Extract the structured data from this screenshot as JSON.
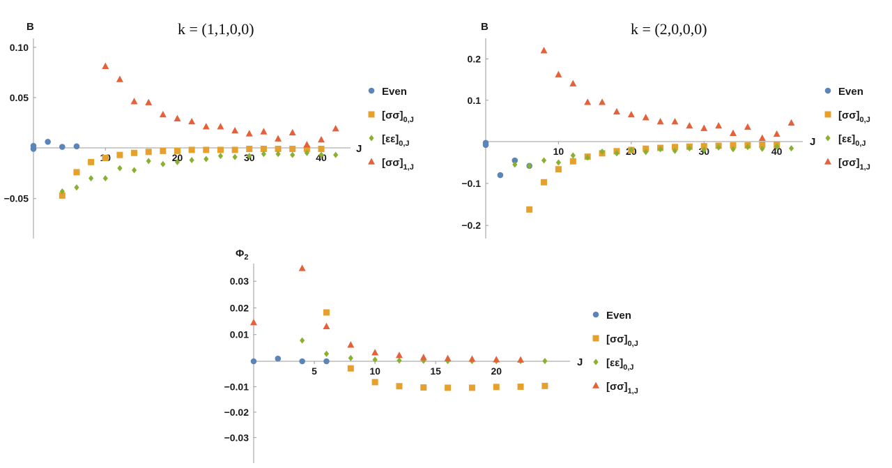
{
  "colors": {
    "even": "#5b84b9",
    "ss0": "#e6a02d",
    "ee0": "#8ab02f",
    "ss1": "#e5613a"
  },
  "legend_entries": [
    {
      "key": "even",
      "label": "Even",
      "marker": "circle"
    },
    {
      "key": "ss0",
      "label": "[σσ]0,J",
      "marker": "square"
    },
    {
      "key": "ee0",
      "label": "[εε]0,J",
      "marker": "diamond"
    },
    {
      "key": "ss1",
      "label": "[σσ]1,J",
      "marker": "triangle"
    }
  ],
  "chart_data": [
    {
      "type": "scatter",
      "title": "k = (1,1,0,0)",
      "ylabel": "B",
      "xlabel": "J",
      "xlim": [
        0,
        43
      ],
      "ylim": [
        -0.088,
        0.104
      ],
      "xticks": [
        10,
        20,
        30,
        40
      ],
      "yticks": [
        -0.05,
        0.05,
        0.1
      ],
      "yticklabels": [
        "−0.05",
        "0.05",
        "0.10"
      ],
      "series": [
        {
          "key": "even",
          "name": "Even",
          "x": [
            0,
            0,
            2,
            4,
            6
          ],
          "y": [
            0.002,
            -0.001,
            0.006,
            0.001,
            0.0015
          ]
        },
        {
          "key": "ss0",
          "name": "[σσ]0,J",
          "x": [
            4,
            6,
            8,
            10,
            12,
            14,
            16,
            18,
            20,
            22,
            24,
            26,
            28,
            30,
            32,
            34,
            36,
            38,
            40
          ],
          "y": [
            -0.047,
            -0.024,
            -0.014,
            -0.01,
            -0.007,
            -0.005,
            -0.004,
            -0.003,
            -0.003,
            -0.002,
            -0.002,
            -0.002,
            -0.002,
            -0.001,
            -0.001,
            -0.001,
            -0.001,
            -0.001,
            -0.001
          ]
        },
        {
          "key": "ee0",
          "name": "[εε]0,J",
          "x": [
            4,
            6,
            8,
            10,
            12,
            14,
            16,
            18,
            20,
            22,
            24,
            26,
            28,
            30,
            32,
            34,
            36,
            38,
            40,
            42
          ],
          "y": [
            -0.043,
            -0.039,
            -0.03,
            -0.03,
            -0.02,
            -0.022,
            -0.013,
            -0.016,
            -0.014,
            -0.012,
            -0.011,
            -0.008,
            -0.009,
            -0.008,
            -0.006,
            -0.006,
            -0.007,
            -0.005,
            -0.007,
            -0.007
          ]
        },
        {
          "key": "ss1",
          "name": "[σσ]1,J",
          "x": [
            10,
            12,
            14,
            16,
            18,
            20,
            22,
            24,
            26,
            28,
            30,
            32,
            34,
            36,
            38,
            40,
            42
          ],
          "y": [
            0.081,
            0.068,
            0.046,
            0.045,
            0.033,
            0.029,
            0.026,
            0.021,
            0.021,
            0.017,
            0.014,
            0.016,
            0.009,
            0.015,
            0.003,
            0.008,
            0.019
          ]
        }
      ]
    },
    {
      "type": "scatter",
      "title": "k = (2,0,0,0)",
      "ylabel": "B",
      "xlabel": "J",
      "xlim": [
        0,
        43
      ],
      "ylim": [
        -0.228,
        0.238
      ],
      "xticks": [
        10,
        20,
        30,
        40
      ],
      "yticks": [
        -0.2,
        -0.1,
        0.1,
        0.2
      ],
      "yticklabels": [
        "−0.2",
        "−0.1",
        "0.1",
        "0.2"
      ],
      "series": [
        {
          "key": "even",
          "name": "Even",
          "x": [
            0,
            0,
            2,
            4,
            6
          ],
          "y": [
            -0.003,
            -0.008,
            -0.08,
            -0.045,
            -0.058
          ]
        },
        {
          "key": "ss0",
          "name": "[σσ]0,J",
          "x": [
            6,
            8,
            10,
            12,
            14,
            16,
            18,
            20,
            22,
            24,
            26,
            28,
            30,
            32,
            34,
            36,
            38,
            40
          ],
          "y": [
            -0.162,
            -0.097,
            -0.066,
            -0.047,
            -0.036,
            -0.028,
            -0.023,
            -0.02,
            -0.017,
            -0.015,
            -0.013,
            -0.012,
            -0.011,
            -0.01,
            -0.009,
            -0.009,
            -0.008,
            -0.008
          ]
        },
        {
          "key": "ee0",
          "name": "[εε]0,J",
          "x": [
            4,
            6,
            8,
            10,
            12,
            14,
            16,
            18,
            20,
            22,
            24,
            26,
            28,
            30,
            32,
            34,
            36,
            38,
            40,
            42
          ],
          "y": [
            -0.055,
            -0.058,
            -0.045,
            -0.05,
            -0.033,
            -0.038,
            -0.024,
            -0.028,
            -0.02,
            -0.025,
            -0.018,
            -0.022,
            -0.016,
            -0.02,
            -0.014,
            -0.018,
            -0.013,
            -0.017,
            -0.012,
            -0.016
          ]
        },
        {
          "key": "ss1",
          "name": "[σσ]1,J",
          "x": [
            8,
            10,
            12,
            14,
            16,
            18,
            20,
            22,
            24,
            26,
            28,
            30,
            32,
            34,
            36,
            38,
            40,
            42
          ],
          "y": [
            0.22,
            0.162,
            0.14,
            0.095,
            0.095,
            0.072,
            0.065,
            0.058,
            0.048,
            0.048,
            0.038,
            0.032,
            0.038,
            0.02,
            0.035,
            0.008,
            0.018,
            0.045
          ]
        }
      ]
    },
    {
      "type": "scatter",
      "title": "",
      "ylabel": "Φ2",
      "xlabel": "J",
      "xlim": [
        0,
        25.5
      ],
      "ylim": [
        -0.0395,
        0.0345
      ],
      "xticks": [
        5,
        10,
        15,
        20
      ],
      "yticks": [
        -0.03,
        -0.02,
        -0.01,
        0.01,
        0.02,
        0.03
      ],
      "yticklabels": [
        "−0.03",
        "−0.02",
        "−0.01",
        "0.01",
        "0.02",
        "0.03"
      ],
      "series": [
        {
          "key": "even",
          "name": "Even",
          "x": [
            0,
            2,
            4,
            6
          ],
          "y": [
            0.0,
            0.001,
            0.0,
            0.0
          ]
        },
        {
          "key": "ss0",
          "name": "[σσ]0,J",
          "x": [
            6,
            8,
            10,
            12,
            14,
            16,
            18,
            20,
            22,
            24
          ],
          "y": [
            0.0183,
            -0.0028,
            -0.0082,
            -0.0098,
            -0.0103,
            -0.0104,
            -0.0104,
            -0.0101,
            -0.01,
            -0.0097
          ]
        },
        {
          "key": "ee0",
          "name": "[εε]0,J",
          "x": [
            4,
            6,
            8,
            10,
            12,
            14,
            16,
            18,
            20,
            22,
            24
          ],
          "y": [
            0.0078,
            0.0028,
            0.0012,
            0.0006,
            0.0003,
            0.0002,
            0.0001,
            0.0001,
            0.0001,
            0.0001,
            0.0001
          ]
        },
        {
          "key": "ss1",
          "name": "[σσ]1,J",
          "x": [
            0,
            4,
            6,
            8,
            10,
            12,
            14,
            16,
            18,
            20,
            22
          ],
          "y": [
            0.0145,
            0.0348,
            0.013,
            0.0061,
            0.0032,
            0.0022,
            0.0014,
            0.001,
            0.0008,
            0.0006,
            0.0005
          ]
        }
      ]
    }
  ]
}
